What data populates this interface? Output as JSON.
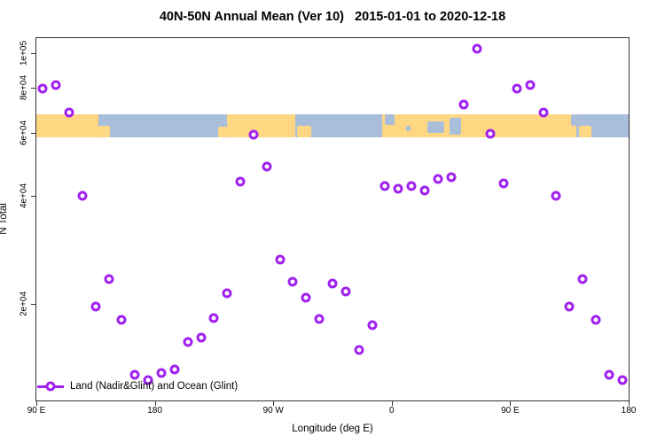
{
  "title": "40N-50N Annual Mean (Ver 10)   2015-01-01 to 2020-12-18",
  "colors": {
    "marker": "#A020F0",
    "land": "#FFD782",
    "ocean": "#A9BEDA",
    "frame": "#333333",
    "background": "#FFFFFF"
  },
  "chart_data": {
    "type": "scatter",
    "title": "40N-50N Annual Mean (Ver 10)   2015-01-01 to 2020-12-18",
    "xlabel": "Longitude (deg E)",
    "ylabel": "N Total",
    "grid": false,
    "x_axis": {
      "min": 90,
      "max": 540,
      "note": "longitude wraps: 90E to 180, 90W, 0, 90E, 180",
      "ticks": [
        {
          "value": 90,
          "label": "90 E"
        },
        {
          "value": 180,
          "label": "180"
        },
        {
          "value": 270,
          "label": "90 W"
        },
        {
          "value": 360,
          "label": "0"
        },
        {
          "value": 450,
          "label": "90 E"
        },
        {
          "value": 540,
          "label": "180"
        }
      ]
    },
    "y_axis": {
      "scale": "log",
      "min": 10800,
      "max": 110000,
      "ticks": [
        {
          "value": 100000,
          "label": "1e+05"
        },
        {
          "value": 80000,
          "label": "8e+04"
        },
        {
          "value": 60000,
          "label": "6e+04"
        },
        {
          "value": 40000,
          "label": "4e+04"
        },
        {
          "value": 20000,
          "label": "2e+04"
        }
      ]
    },
    "legend": {
      "label": "Land (Nadir&Glint) and Ocean (Glint)",
      "position": "bottom-left",
      "marker": "line-open-circle"
    },
    "series": [
      {
        "name": "Land (Nadir&Glint) and Ocean (Glint)",
        "marker": "open-circle",
        "color": "#A020F0",
        "points": [
          [
            95,
            79400
          ],
          [
            105,
            81200
          ],
          [
            115,
            68200
          ],
          [
            125,
            40000
          ],
          [
            135,
            19700
          ],
          [
            145,
            23500
          ],
          [
            155,
            18100
          ],
          [
            165,
            12700
          ],
          [
            175,
            12300
          ],
          [
            185,
            12900
          ],
          [
            195,
            13200
          ],
          [
            205,
            15700
          ],
          [
            215,
            16200
          ],
          [
            225,
            18300
          ],
          [
            235,
            21500
          ],
          [
            245,
            43800
          ],
          [
            255,
            59300
          ],
          [
            265,
            48200
          ],
          [
            275,
            26600
          ],
          [
            285,
            23100
          ],
          [
            295,
            20900
          ],
          [
            305,
            18200
          ],
          [
            315,
            22800
          ],
          [
            325,
            21700
          ],
          [
            335,
            14900
          ],
          [
            345,
            17500
          ],
          [
            355,
            42600
          ],
          [
            365,
            41900
          ],
          [
            375,
            42600
          ],
          [
            385,
            41400
          ],
          [
            395,
            44500
          ],
          [
            405,
            45100
          ],
          [
            415,
            71800
          ],
          [
            425,
            102800
          ],
          [
            435,
            59600
          ],
          [
            445,
            43300
          ],
          [
            455,
            79400
          ],
          [
            465,
            81200
          ],
          [
            475,
            68200
          ],
          [
            485,
            40000
          ],
          [
            495,
            19700
          ],
          [
            505,
            23500
          ],
          [
            515,
            18100
          ],
          [
            525,
            12700
          ],
          [
            535,
            12300
          ]
        ]
      }
    ],
    "map_band": {
      "y_top": 67500,
      "y_bottom": 58300,
      "land_color": "#FFD782",
      "ocean_color": "#A9BEDA",
      "segments": [
        {
          "from": 90,
          "to": 137,
          "type": "land"
        },
        {
          "from": 137,
          "to": 235,
          "type": "ocean"
        },
        {
          "from": 235,
          "to": 287,
          "type": "land"
        },
        {
          "from": 287,
          "to": 353,
          "type": "ocean"
        },
        {
          "from": 353,
          "to": 500,
          "type": "land"
        },
        {
          "from": 500,
          "to": 540,
          "type": "ocean"
        }
      ],
      "patches": [
        {
          "from": 137,
          "to": 146,
          "v0": 0.5,
          "v1": 1.0,
          "type": "land"
        },
        {
          "from": 228,
          "to": 235,
          "v0": 0.55,
          "v1": 1.0,
          "type": "land"
        },
        {
          "from": 288,
          "to": 299,
          "v0": 0.5,
          "v1": 1.0,
          "type": "land"
        },
        {
          "from": 355,
          "to": 362,
          "v0": 0.0,
          "v1": 0.45,
          "type": "ocean"
        },
        {
          "from": 371,
          "to": 374,
          "v0": 0.5,
          "v1": 0.75,
          "type": "ocean"
        },
        {
          "from": 387,
          "to": 400,
          "v0": 0.3,
          "v1": 0.8,
          "type": "ocean"
        },
        {
          "from": 404,
          "to": 413,
          "v0": 0.15,
          "v1": 0.9,
          "type": "ocean"
        },
        {
          "from": 496,
          "to": 500,
          "v0": 0.0,
          "v1": 0.5,
          "type": "ocean"
        },
        {
          "from": 502,
          "to": 512,
          "v0": 0.5,
          "v1": 1.0,
          "type": "land"
        }
      ]
    }
  }
}
